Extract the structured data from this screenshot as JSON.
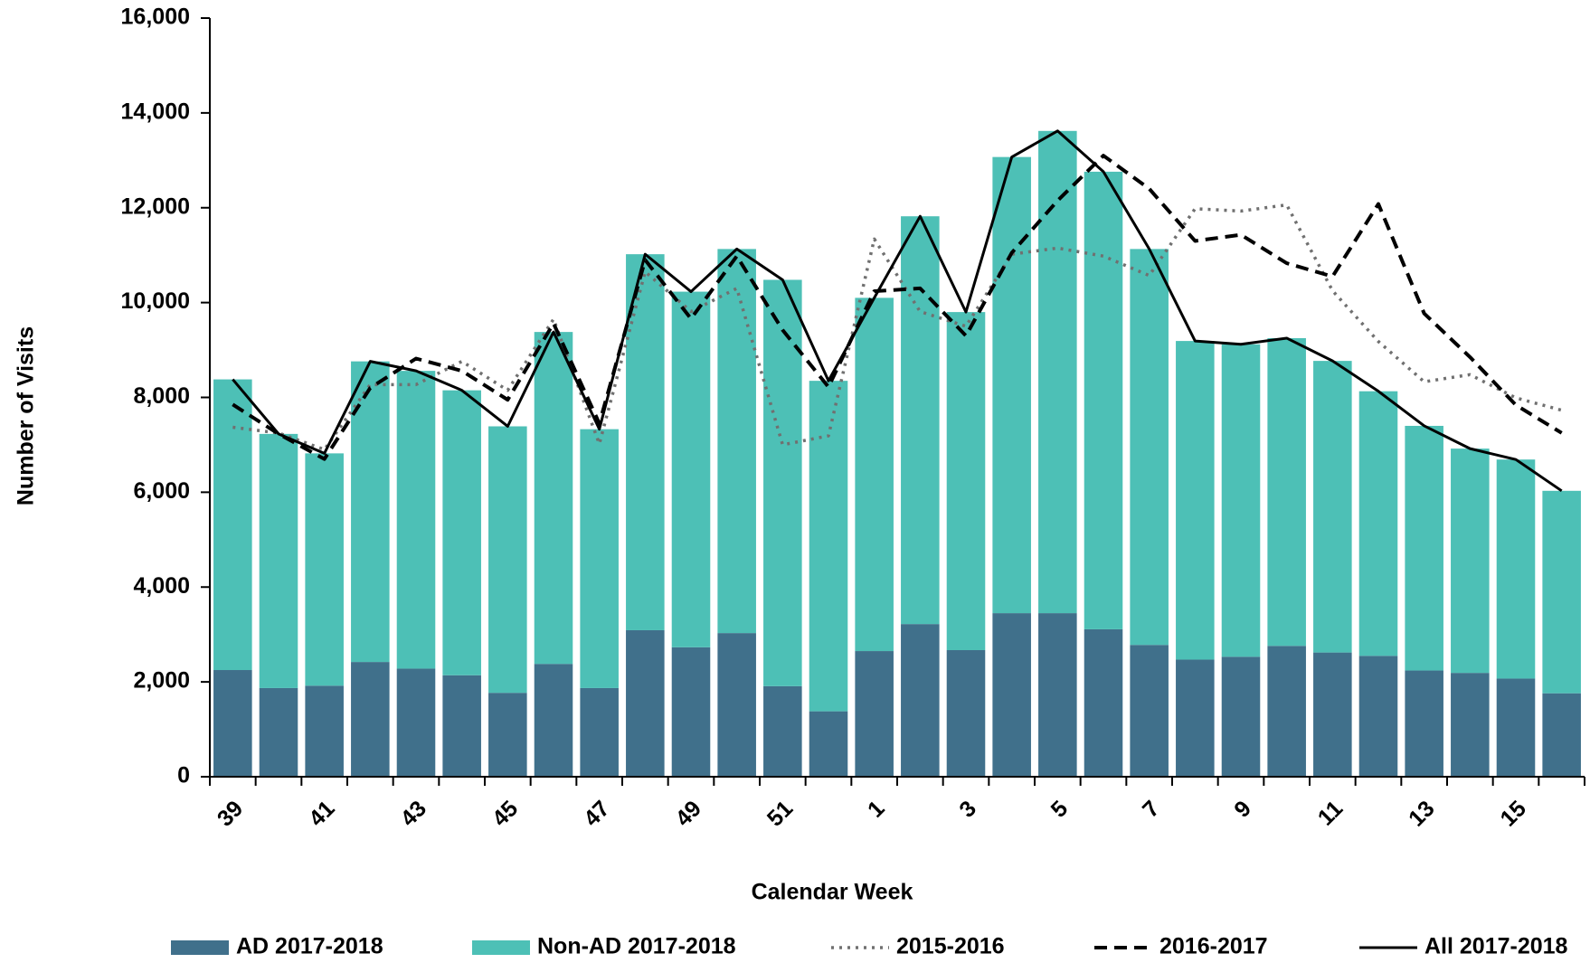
{
  "chart_data": {
    "type": "bar",
    "stacked": true,
    "x_label": "Calendar Week",
    "y_label": "Number of Visits",
    "categories": [
      "39",
      null,
      "41",
      null,
      "43",
      null,
      "45",
      null,
      "47",
      null,
      "49",
      null,
      "51",
      null,
      "1",
      null,
      "3",
      null,
      "5",
      null,
      "7",
      null,
      "9",
      null,
      "11",
      null,
      "13",
      null,
      "15",
      null
    ],
    "ylim": [
      0,
      16000
    ],
    "yticks": [
      0,
      {
        "value": 2000,
        "label": "2,000"
      },
      {
        "value": 4000,
        "label": "4,000"
      },
      {
        "value": 6000,
        "label": "6,000"
      },
      {
        "value": 8000,
        "label": "8,000"
      },
      {
        "value": 10000,
        "label": "10,000"
      },
      {
        "value": 12000,
        "label": "12,000"
      },
      {
        "value": 14000,
        "label": "14,000"
      },
      {
        "value": 16000,
        "label": "16,000"
      }
    ],
    "grid": false,
    "legend": "bottom",
    "series": [
      {
        "name": "AD 2017-2018",
        "type": "bar",
        "color": "#40708b",
        "values": [
          2250,
          1870,
          1920,
          2420,
          2280,
          2140,
          1770,
          2380,
          1870,
          3090,
          2730,
          3030,
          1910,
          1380,
          2650,
          3220,
          2670,
          3450,
          3450,
          3110,
          2780,
          2470,
          2530,
          2760,
          2620,
          2550,
          2240,
          2190,
          2070,
          1760
        ]
      },
      {
        "name": "Non-AD 2017-2018",
        "type": "bar",
        "color": "#4dc0b6",
        "values": [
          6130,
          5360,
          4900,
          6340,
          6280,
          6010,
          5620,
          7000,
          5460,
          7930,
          7500,
          8100,
          8570,
          6970,
          7450,
          8600,
          7130,
          9620,
          10170,
          9650,
          8350,
          6720,
          6590,
          6490,
          6150,
          5580,
          5160,
          4730,
          4620,
          4270
        ]
      },
      {
        "name": "2015-2016",
        "type": "line",
        "color": "#707070",
        "line_style": "dotted",
        "values": [
          7370,
          7250,
          6900,
          8270,
          8270,
          8760,
          8150,
          9650,
          7020,
          10650,
          9810,
          10300,
          7000,
          7190,
          11340,
          9810,
          9500,
          11020,
          11150,
          10980,
          10570,
          11980,
          11930,
          12060,
          10250,
          9180,
          8330,
          8480,
          7990,
          7730
        ]
      },
      {
        "name": "2016-2017",
        "type": "line",
        "color": "#000000",
        "line_style": "dashed",
        "values": [
          7850,
          7230,
          6700,
          8200,
          8820,
          8560,
          7950,
          9560,
          7450,
          10900,
          9660,
          10980,
          9420,
          8220,
          10240,
          10300,
          9300,
          11050,
          12150,
          13100,
          12400,
          11300,
          11430,
          10830,
          10550,
          12080,
          9770,
          8850,
          7840,
          7250
        ]
      },
      {
        "name": "All 2017-2018",
        "type": "line",
        "color": "#000000",
        "line_style": "solid",
        "values": [
          8380,
          7230,
          6820,
          8760,
          8560,
          8150,
          7390,
          9380,
          7330,
          11020,
          10230,
          11130,
          10480,
          8350,
          10100,
          11820,
          9800,
          13070,
          13620,
          12760,
          11130,
          9190,
          9120,
          9250,
          8770,
          8130,
          7400,
          6920,
          6690,
          6030
        ]
      }
    ]
  }
}
